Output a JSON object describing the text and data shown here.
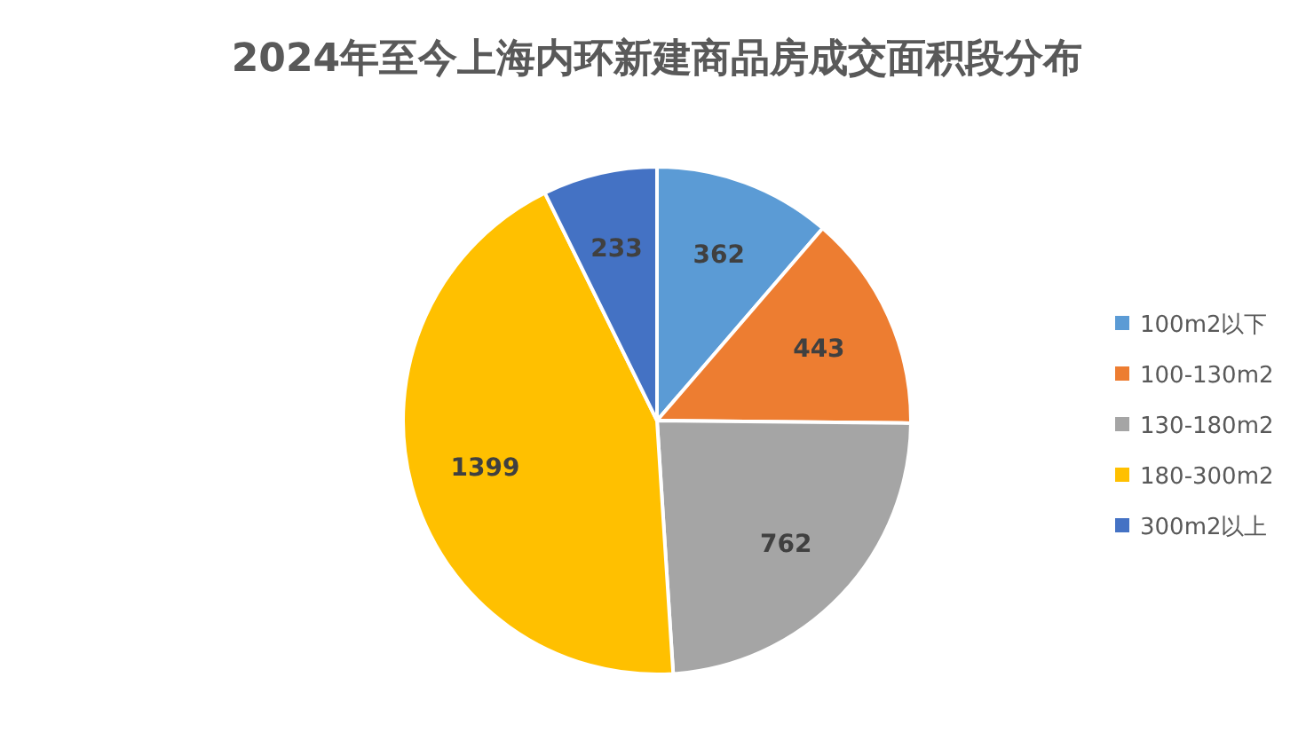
{
  "chart_data": {
    "type": "pie",
    "title": "2024年至今上海内环新建商品房成交面积段分布",
    "categories": [
      "100m2以下",
      "100-130m2",
      "130-180m2",
      "180-300m2",
      "300m2以上"
    ],
    "values": [
      362,
      443,
      762,
      1399,
      233
    ],
    "colors": [
      "#5b9bd5",
      "#ed7d31",
      "#a5a5a5",
      "#ffc000",
      "#4472c4"
    ],
    "data_labels": true,
    "legend": "right"
  }
}
